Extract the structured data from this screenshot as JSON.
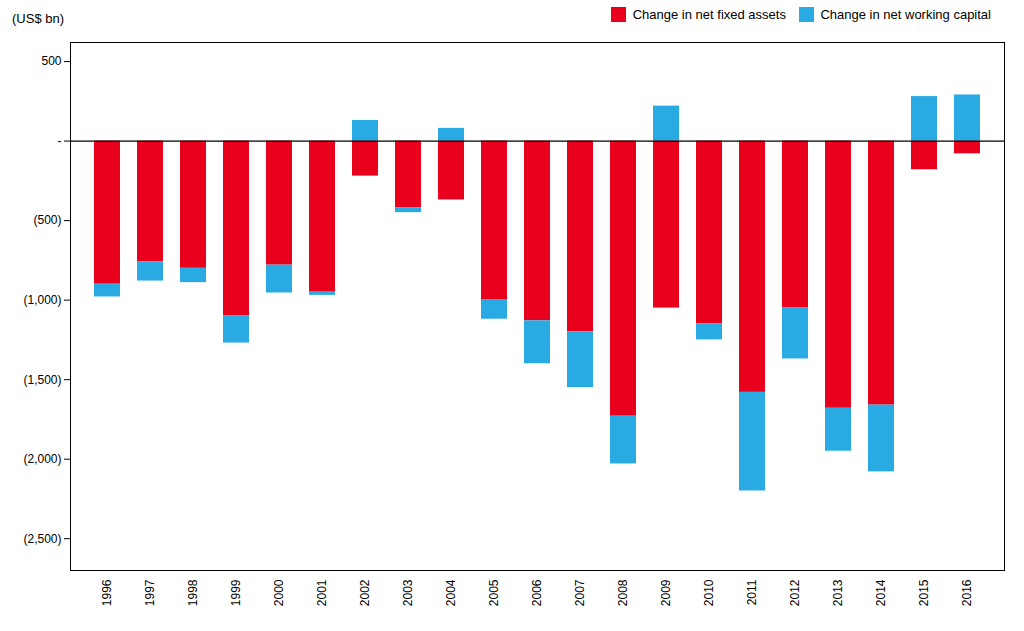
{
  "chart_data": {
    "type": "bar",
    "stacked": true,
    "categories": [
      "1996",
      "1997",
      "1998",
      "1999",
      "2000",
      "2001",
      "2002",
      "2003",
      "2004",
      "2005",
      "2006",
      "2007",
      "2008",
      "2009",
      "2010",
      "2011",
      "2012",
      "2013",
      "2014",
      "2015",
      "2016"
    ],
    "series": [
      {
        "name": "Change in net fixed assets",
        "color": "#e8001c",
        "values": [
          -900,
          -760,
          -800,
          -1100,
          -780,
          -950,
          -220,
          -420,
          -370,
          -1000,
          -1130,
          -1200,
          -1730,
          -1050,
          -1150,
          -1580,
          -1050,
          -1680,
          -1660,
          -180,
          -80
        ]
      },
      {
        "name": "Change in net working capital",
        "color": "#29aae2",
        "values": [
          -80,
          -120,
          -90,
          -170,
          -175,
          -20,
          130,
          -30,
          80,
          -120,
          -270,
          -350,
          -300,
          220,
          -100,
          -620,
          -320,
          -270,
          -420,
          280,
          290
        ]
      }
    ],
    "ylabel": "(US$ bn)",
    "ylim": [
      -2700,
      620
    ],
    "yticks": [
      500,
      {
        "value": 0,
        "label": "-"
      },
      {
        "value": -500,
        "label": "(500)"
      },
      {
        "value": -1000,
        "label": "(1,000)"
      },
      {
        "value": -1500,
        "label": "(1,500)"
      },
      {
        "value": -2000,
        "label": "(2,000)"
      },
      {
        "value": -2500,
        "label": "(2,500)"
      }
    ],
    "legend": "upper right",
    "grid": false
  }
}
